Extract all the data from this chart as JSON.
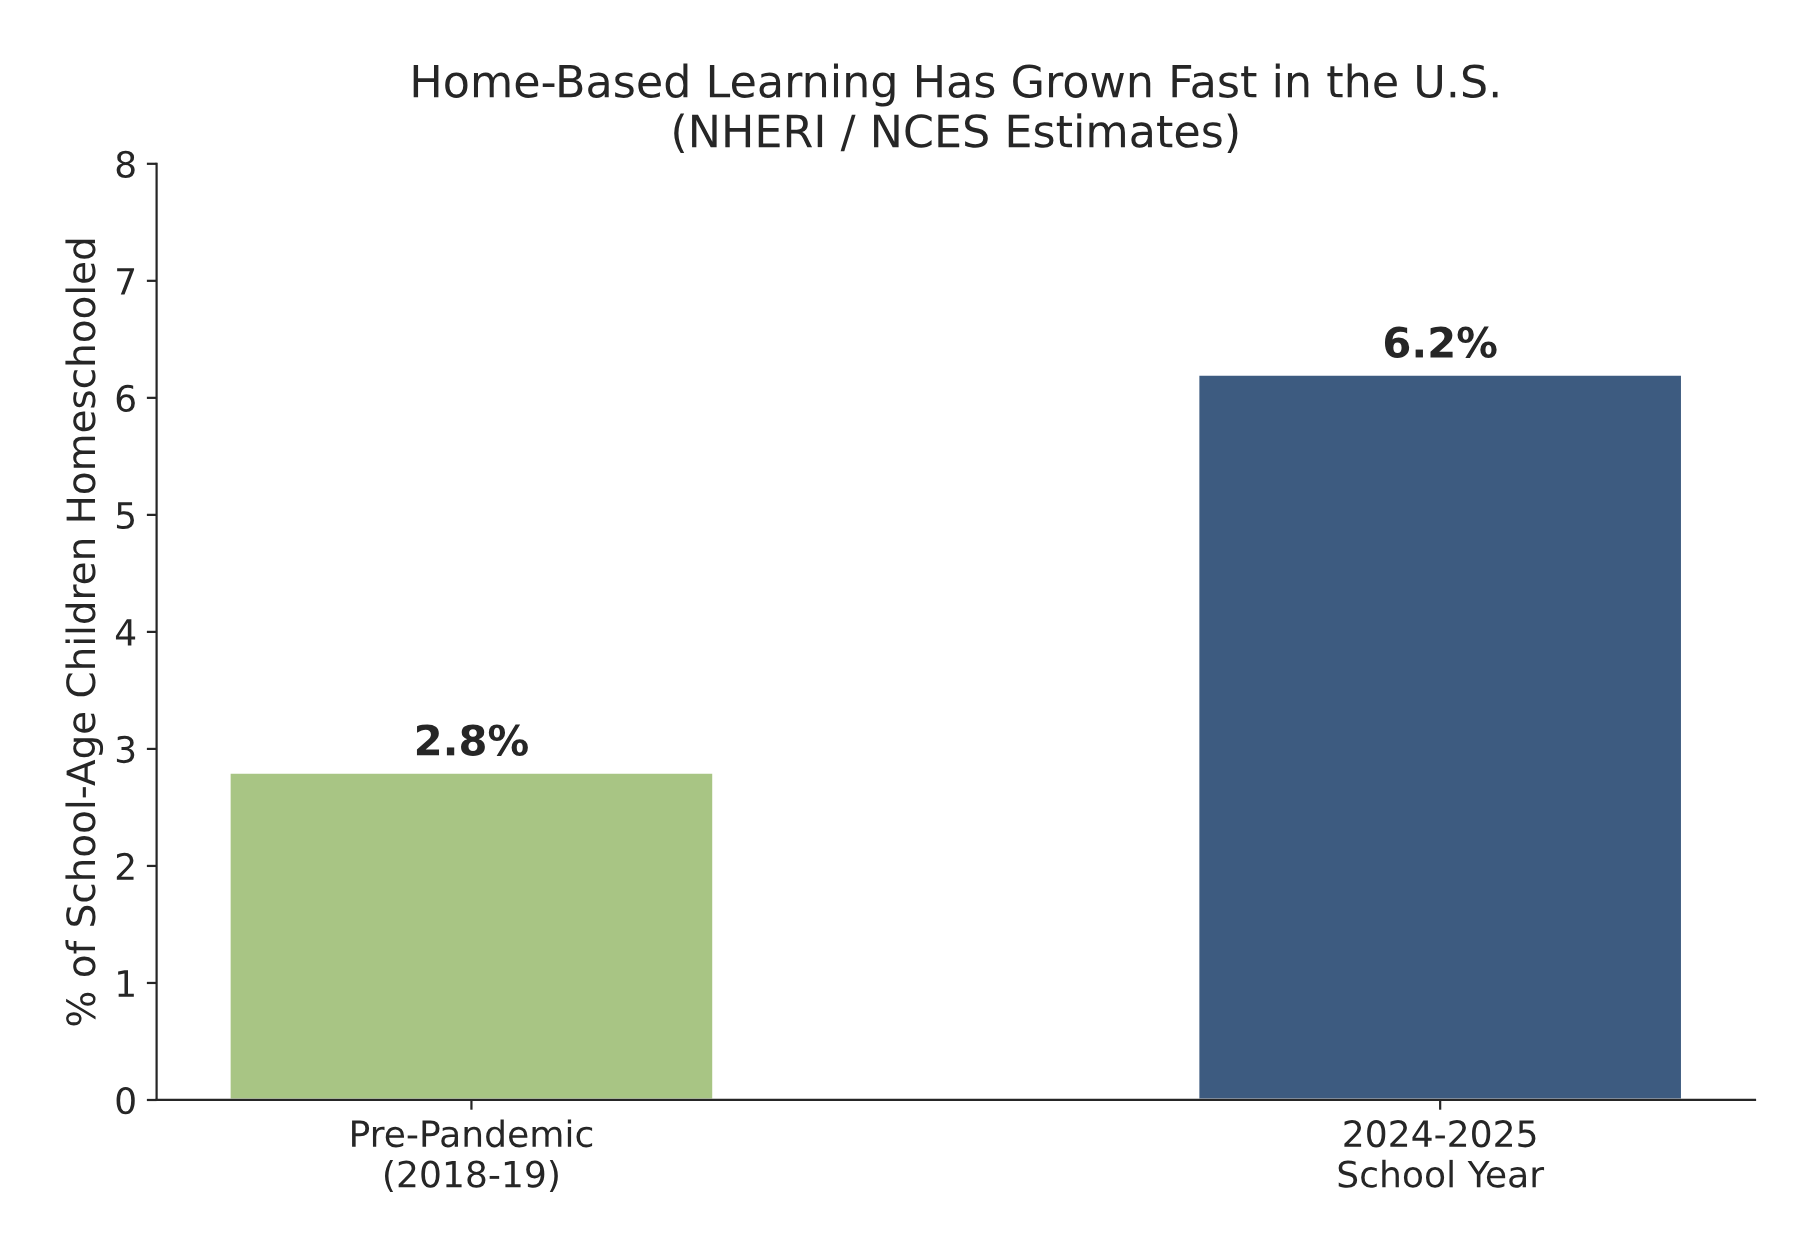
{
  "chart_data": {
    "type": "bar",
    "title": "Home-Based Learning Has Grown Fast in the U.S.\n(NHERI / NCES Estimates)",
    "ylabel": "% of School-Age Children Homeschooled",
    "categories": [
      "Pre-Pandemic\n(2018-19)",
      "2024-2025\nSchool Year"
    ],
    "values": [
      2.8,
      6.2
    ],
    "colors": [
      "#a8c584",
      "#3d5b80"
    ],
    "value_labels": [
      "2.8%",
      "6.2%"
    ],
    "ylim": [
      0,
      8
    ],
    "yticks": [
      0,
      1,
      2,
      3,
      4,
      5,
      6,
      7,
      8
    ],
    "grid": false,
    "legend": false
  }
}
